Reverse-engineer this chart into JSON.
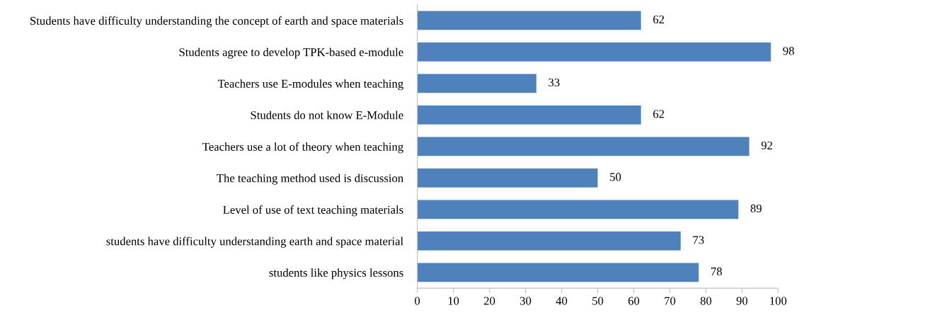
{
  "chart_data": {
    "type": "bar",
    "orientation": "horizontal",
    "categories": [
      "Students have difficulty understanding the concept of earth and space materials",
      "Students agree to develop TPK-based e-module",
      "Teachers use E-modules when teaching",
      "Students do not know E-Module",
      "Teachers use a lot of theory when teaching",
      "The teaching method used is discussion",
      "Level of use of text teaching materials",
      "students have difficulty understanding earth and space material",
      "students like physics lessons"
    ],
    "values": [
      62,
      98,
      33,
      62,
      92,
      50,
      89,
      73,
      78
    ],
    "color": "#4f81bd",
    "xlim": [
      0,
      100
    ],
    "xticks": [
      0,
      10,
      20,
      30,
      40,
      50,
      60,
      70,
      80,
      90,
      100
    ],
    "data_labels": true,
    "grid": false,
    "legend": false
  }
}
